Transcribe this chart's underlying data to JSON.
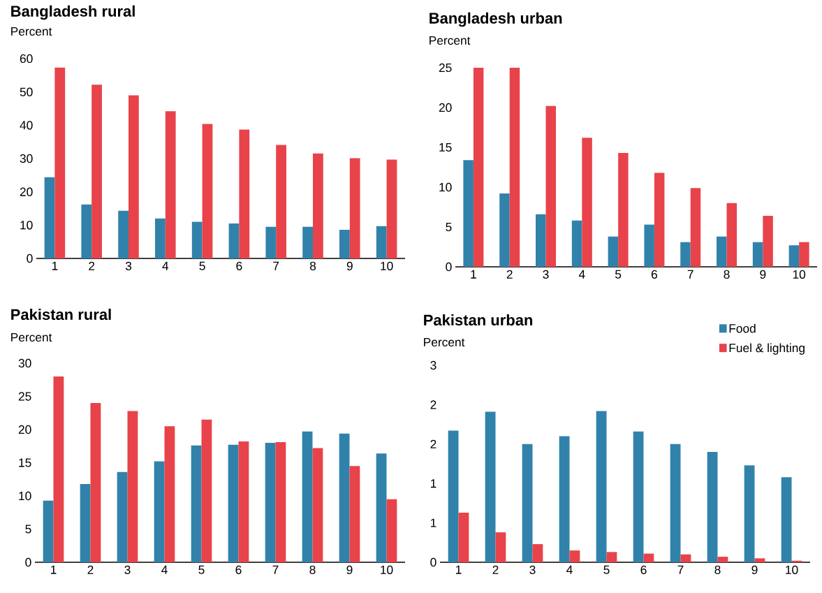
{
  "chart_data": [
    {
      "type": "bar",
      "title": "Bangladesh rural",
      "ylabel": "Percent",
      "categories": [
        "1",
        "2",
        "3",
        "4",
        "5",
        "6",
        "7",
        "8",
        "9",
        "10"
      ],
      "ylim": [
        0,
        60
      ],
      "yticks": [
        0,
        10,
        20,
        30,
        40,
        50,
        60
      ],
      "series": [
        {
          "color": "#3182ab",
          "values": [
            24.4,
            16.2,
            14.3,
            12.0,
            11.0,
            10.5,
            9.5,
            9.5,
            8.6,
            9.7
          ]
        },
        {
          "color": "#e8434a",
          "values": [
            57.3,
            52.2,
            49.0,
            44.2,
            40.4,
            38.7,
            34.1,
            31.5,
            30.1,
            29.7
          ]
        }
      ]
    },
    {
      "type": "bar",
      "title": "Bangladesh urban",
      "ylabel": "Percent",
      "categories": [
        "1",
        "2",
        "3",
        "4",
        "5",
        "6",
        "7",
        "8",
        "9",
        "10"
      ],
      "ylim": [
        0,
        25
      ],
      "yticks": [
        0,
        5,
        10,
        15,
        20,
        25
      ],
      "series": [
        {
          "color": "#3182ab",
          "values": [
            13.4,
            9.2,
            6.6,
            5.8,
            3.8,
            5.3,
            3.1,
            3.8,
            3.1,
            2.7
          ]
        },
        {
          "color": "#e8434a",
          "values": [
            25.0,
            25.0,
            20.2,
            16.2,
            14.3,
            11.8,
            9.9,
            8.0,
            6.4,
            3.1
          ]
        }
      ]
    },
    {
      "type": "bar",
      "title": "Pakistan rural",
      "ylabel": "Percent",
      "categories": [
        "1",
        "2",
        "3",
        "4",
        "5",
        "6",
        "7",
        "8",
        "9",
        "10"
      ],
      "ylim": [
        0,
        30
      ],
      "yticks": [
        0,
        5,
        10,
        15,
        20,
        25,
        30
      ],
      "series": [
        {
          "color": "#3182ab",
          "values": [
            9.3,
            11.8,
            13.6,
            15.2,
            17.6,
            17.7,
            18.0,
            19.7,
            19.4,
            16.4
          ]
        },
        {
          "color": "#e8434a",
          "values": [
            28.0,
            24.0,
            22.8,
            20.5,
            21.5,
            18.2,
            18.1,
            17.2,
            14.5,
            9.5
          ]
        }
      ]
    },
    {
      "type": "bar",
      "title": "Pakistan urban",
      "ylabel": "Percent",
      "categories": [
        "1",
        "2",
        "3",
        "4",
        "5",
        "6",
        "7",
        "8",
        "9",
        "10"
      ],
      "ylim": [
        0,
        2.5
      ],
      "yticks": [
        0,
        {
          "value": 0.5,
          "label": "1"
        },
        1,
        {
          "value": 1.5,
          "label": "2"
        },
        2,
        {
          "value": 2.5,
          "label": "3"
        }
      ],
      "legend": "top right",
      "series": [
        {
          "name": "Food",
          "color": "#3182ab",
          "values": [
            1.67,
            1.91,
            1.5,
            1.6,
            1.92,
            1.66,
            1.5,
            1.4,
            1.23,
            1.08
          ]
        },
        {
          "name": "Fuel & lighting",
          "color": "#e8434a",
          "values": [
            0.63,
            0.38,
            0.23,
            0.15,
            0.13,
            0.11,
            0.1,
            0.07,
            0.05,
            0.02
          ]
        }
      ]
    }
  ]
}
